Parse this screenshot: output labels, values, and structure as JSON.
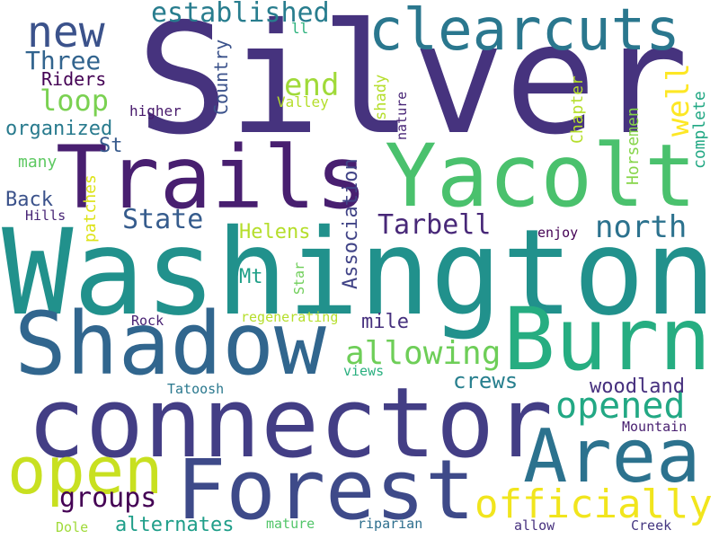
{
  "cloud": {
    "words": [
      {
        "text": "Silver",
        "color": "#46337e"
      },
      {
        "text": "Washington",
        "color": "#21918c"
      },
      {
        "text": "connector",
        "color": "#433e85"
      },
      {
        "text": "Trails",
        "color": "#481f70"
      },
      {
        "text": "Yacolt",
        "color": "#4ac16d"
      },
      {
        "text": "Shadow",
        "color": "#31668e"
      },
      {
        "text": "Burn",
        "color": "#26ad81"
      },
      {
        "text": "Forest",
        "color": "#3e4a89"
      },
      {
        "text": "Area",
        "color": "#2c728e"
      },
      {
        "text": "open",
        "color": "#c8e020"
      },
      {
        "text": "clearcuts",
        "color": "#2a778e"
      },
      {
        "text": "officially",
        "color": "#f1e51d"
      },
      {
        "text": "new",
        "color": "#3b528b"
      },
      {
        "text": "established",
        "color": "#287d8e"
      },
      {
        "text": "opened",
        "color": "#22a884"
      },
      {
        "text": "allowing",
        "color": "#6ece58"
      },
      {
        "text": "groups",
        "color": "#440154"
      },
      {
        "text": "Tarbell",
        "color": "#482878"
      },
      {
        "text": "north",
        "color": "#2c728e"
      },
      {
        "text": "State",
        "color": "#365c8d"
      },
      {
        "text": "loop",
        "color": "#7ad151"
      },
      {
        "text": "Three",
        "color": "#32648e"
      },
      {
        "text": "end",
        "color": "#a0da39"
      },
      {
        "text": "well",
        "color": "#fde725"
      },
      {
        "text": "crews",
        "color": "#277f8e"
      },
      {
        "text": "alternates",
        "color": "#1f9e89"
      },
      {
        "text": "woodland",
        "color": "#46307e"
      },
      {
        "text": "Riders",
        "color": "#440154"
      },
      {
        "text": "organized",
        "color": "#297b8e"
      },
      {
        "text": "Back",
        "color": "#3b528b"
      },
      {
        "text": "Helens",
        "color": "#b5de2b"
      },
      {
        "text": "Mt",
        "color": "#1fa088"
      },
      {
        "text": "mile",
        "color": "#46307e"
      },
      {
        "text": "St",
        "color": "#375a8c"
      },
      {
        "text": "many",
        "color": "#5ec962"
      },
      {
        "text": "higher",
        "color": "#481a6c"
      },
      {
        "text": "Valley",
        "color": "#b5de2b"
      },
      {
        "text": "ll",
        "color": "#2db27d"
      },
      {
        "text": "Hills",
        "color": "#482576"
      },
      {
        "text": "enjoy",
        "color": "#440154"
      },
      {
        "text": "Rock",
        "color": "#482173"
      },
      {
        "text": "regenerating",
        "color": "#b5de2b"
      },
      {
        "text": "views",
        "color": "#29af7f"
      },
      {
        "text": "Tatoosh",
        "color": "#2a788e"
      },
      {
        "text": "Mountain",
        "color": "#481f70"
      },
      {
        "text": "Dole",
        "color": "#a0da39"
      },
      {
        "text": "mature",
        "color": "#52c569"
      },
      {
        "text": "riparian",
        "color": "#2e6f8e"
      },
      {
        "text": "allow",
        "color": "#46307e"
      },
      {
        "text": "Creek",
        "color": "#453781"
      },
      {
        "text": "Country",
        "color": "#3b528b"
      },
      {
        "text": "Association",
        "color": "#414487"
      },
      {
        "text": "shady",
        "color": "#b5de2b"
      },
      {
        "text": "nature",
        "color": "#482576"
      },
      {
        "text": "Chapter",
        "color": "#b5de2b"
      },
      {
        "text": "Horsemen",
        "color": "#86d549"
      },
      {
        "text": "complete",
        "color": "#22a884"
      },
      {
        "text": "patches",
        "color": "#dde318"
      },
      {
        "text": "Star",
        "color": "#6ece58"
      }
    ]
  }
}
